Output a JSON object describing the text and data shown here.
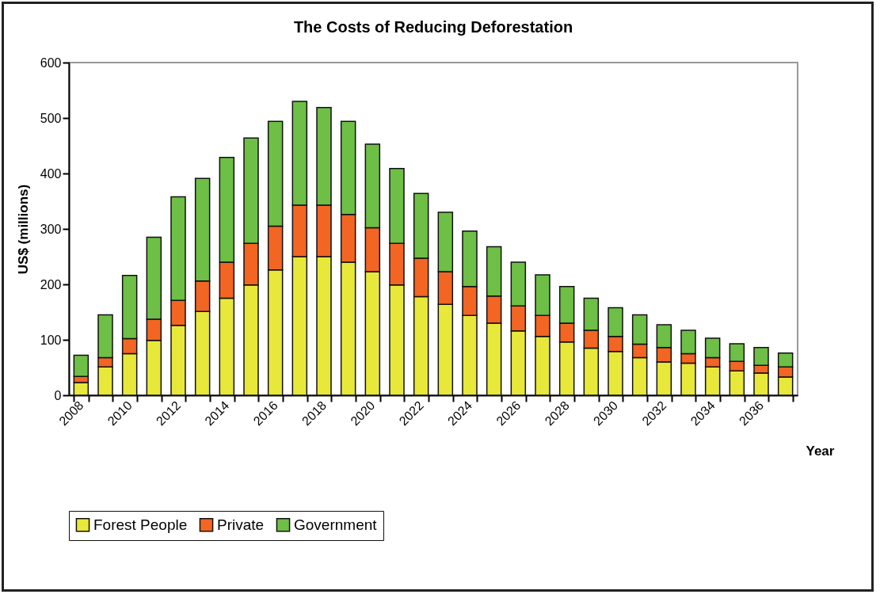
{
  "chart_data": {
    "type": "bar",
    "title": "The Costs of Reducing Deforestation",
    "xlabel": "Year",
    "ylabel": "US$ (millions)",
    "categories": [
      "2008",
      null,
      "2010",
      null,
      "2012",
      null,
      "2014",
      null,
      "2016",
      null,
      "2018",
      null,
      "2020",
      null,
      "2022",
      null,
      "2024",
      null,
      "2026",
      null,
      "2028",
      null,
      "2030",
      null,
      "2032",
      null,
      "2034",
      null,
      "2036",
      null
    ],
    "stacked": true,
    "series": [
      {
        "name": "Forest People",
        "color": "#e8e83a",
        "values": [
          23,
          51,
          75,
          99,
          126,
          151,
          175,
          199,
          226,
          250,
          250,
          240,
          223,
          199,
          178,
          164,
          144,
          130,
          116,
          106,
          96,
          85,
          79,
          68,
          60,
          58,
          51,
          44,
          40,
          33
        ]
      },
      {
        "name": "Private",
        "color": "#f26522",
        "values": [
          11,
          17,
          27,
          38,
          45,
          55,
          65,
          75,
          79,
          93,
          93,
          86,
          79,
          75,
          69,
          59,
          52,
          49,
          45,
          38,
          34,
          32,
          27,
          24,
          26,
          17,
          17,
          17,
          14,
          18
        ]
      },
      {
        "name": "Government",
        "color": "#6dbf45",
        "values": [
          38,
          77,
          114,
          148,
          187,
          185,
          189,
          190,
          189,
          187,
          176,
          168,
          151,
          135,
          117,
          107,
          100,
          89,
          79,
          73,
          66,
          58,
          52,
          53,
          41,
          42,
          35,
          32,
          32,
          25
        ]
      }
    ],
    "ylim": [
      0,
      600
    ],
    "yticks": [
      0,
      100,
      200,
      300,
      400,
      500,
      600
    ],
    "grid": false,
    "legend": "bottom"
  }
}
